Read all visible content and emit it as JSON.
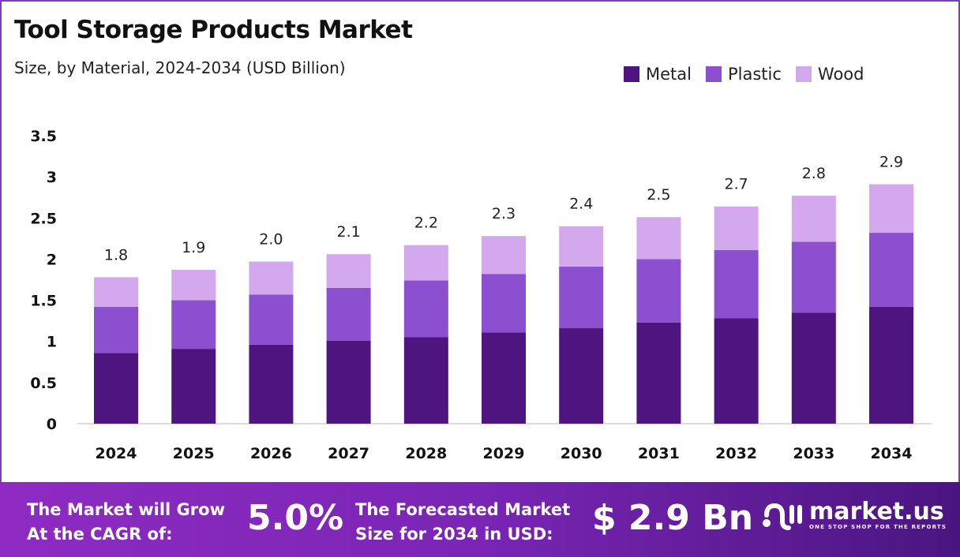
{
  "header": {
    "title": "Tool Storage Products Market",
    "subtitle": "Size, by Material, 2024-2034 (USD Billion)"
  },
  "chart_data": {
    "type": "bar",
    "stacked": true,
    "categories": [
      "2024",
      "2025",
      "2026",
      "2027",
      "2028",
      "2029",
      "2030",
      "2031",
      "2032",
      "2033",
      "2034"
    ],
    "series": [
      {
        "name": "Metal",
        "color": "#4e1580",
        "values": [
          0.86,
          0.91,
          0.96,
          1.01,
          1.05,
          1.11,
          1.16,
          1.23,
          1.28,
          1.35,
          1.42
        ]
      },
      {
        "name": "Plastic",
        "color": "#8b4fd0",
        "values": [
          0.56,
          0.59,
          0.61,
          0.64,
          0.69,
          0.71,
          0.75,
          0.77,
          0.83,
          0.86,
          0.9
        ]
      },
      {
        "name": "Wood",
        "color": "#d4a8ec",
        "values": [
          0.36,
          0.37,
          0.4,
          0.41,
          0.43,
          0.46,
          0.49,
          0.51,
          0.53,
          0.56,
          0.59
        ]
      }
    ],
    "totals_labels": [
      "1.8",
      "1.9",
      "2.0",
      "2.1",
      "2.2",
      "2.3",
      "2.4",
      "2.5",
      "2.7",
      "2.8",
      "2.9"
    ],
    "ylim": [
      0,
      3.5
    ],
    "yticks": [
      "0",
      "0.5",
      "1",
      "1.5",
      "2",
      "2.5",
      "3",
      "3.5"
    ],
    "grid": false,
    "legend_position": "top-right"
  },
  "footer": {
    "cagr_label": "The Market will Grow At the CAGR of:",
    "cagr_value": "5.0%",
    "forecast_label": "The Forecasted Market Size for 2034 in USD:",
    "forecast_value": "$ 2.9 Bn",
    "logo_name": "market.us",
    "logo_tagline": "ONE STOP SHOP FOR THE REPORTS"
  }
}
